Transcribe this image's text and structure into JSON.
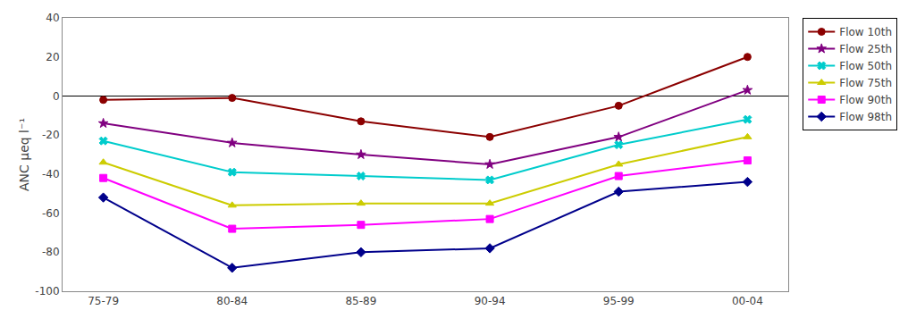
{
  "chart_data": {
    "type": "line",
    "categories": [
      "75-79",
      "80-84",
      "85-89",
      "90-94",
      "95-99",
      "00-04"
    ],
    "series": [
      {
        "name": "Flow 10th",
        "color": "#8B0000",
        "marker": "circle",
        "values": [
          -2,
          -1,
          -13,
          -21,
          -5,
          20
        ]
      },
      {
        "name": "Flow 25th",
        "color": "#800080",
        "marker": "star",
        "values": [
          -14,
          -24,
          -30,
          -35,
          -21,
          3
        ]
      },
      {
        "name": "Flow 50th",
        "color": "#00CCCC",
        "marker": "x",
        "values": [
          -23,
          -39,
          -41,
          -43,
          -25,
          -12
        ]
      },
      {
        "name": "Flow 75th",
        "color": "#CCCC00",
        "marker": "triangle-up",
        "values": [
          -34,
          -56,
          -55,
          -55,
          -35,
          -21
        ]
      },
      {
        "name": "Flow 90th",
        "color": "#FF00FF",
        "marker": "square",
        "values": [
          -42,
          -68,
          -66,
          -63,
          -41,
          -33
        ]
      },
      {
        "name": "Flow 98th",
        "color": "#00008B",
        "marker": "diamond",
        "values": [
          -52,
          -88,
          -80,
          -78,
          -49,
          -44
        ]
      }
    ],
    "ylabel": "ANC μeq l⁻¹",
    "ylim": [
      -100,
      40
    ],
    "yticks": [
      -100,
      -80,
      -60,
      -40,
      -20,
      0,
      20,
      40
    ],
    "grid": false,
    "legend": "right"
  }
}
